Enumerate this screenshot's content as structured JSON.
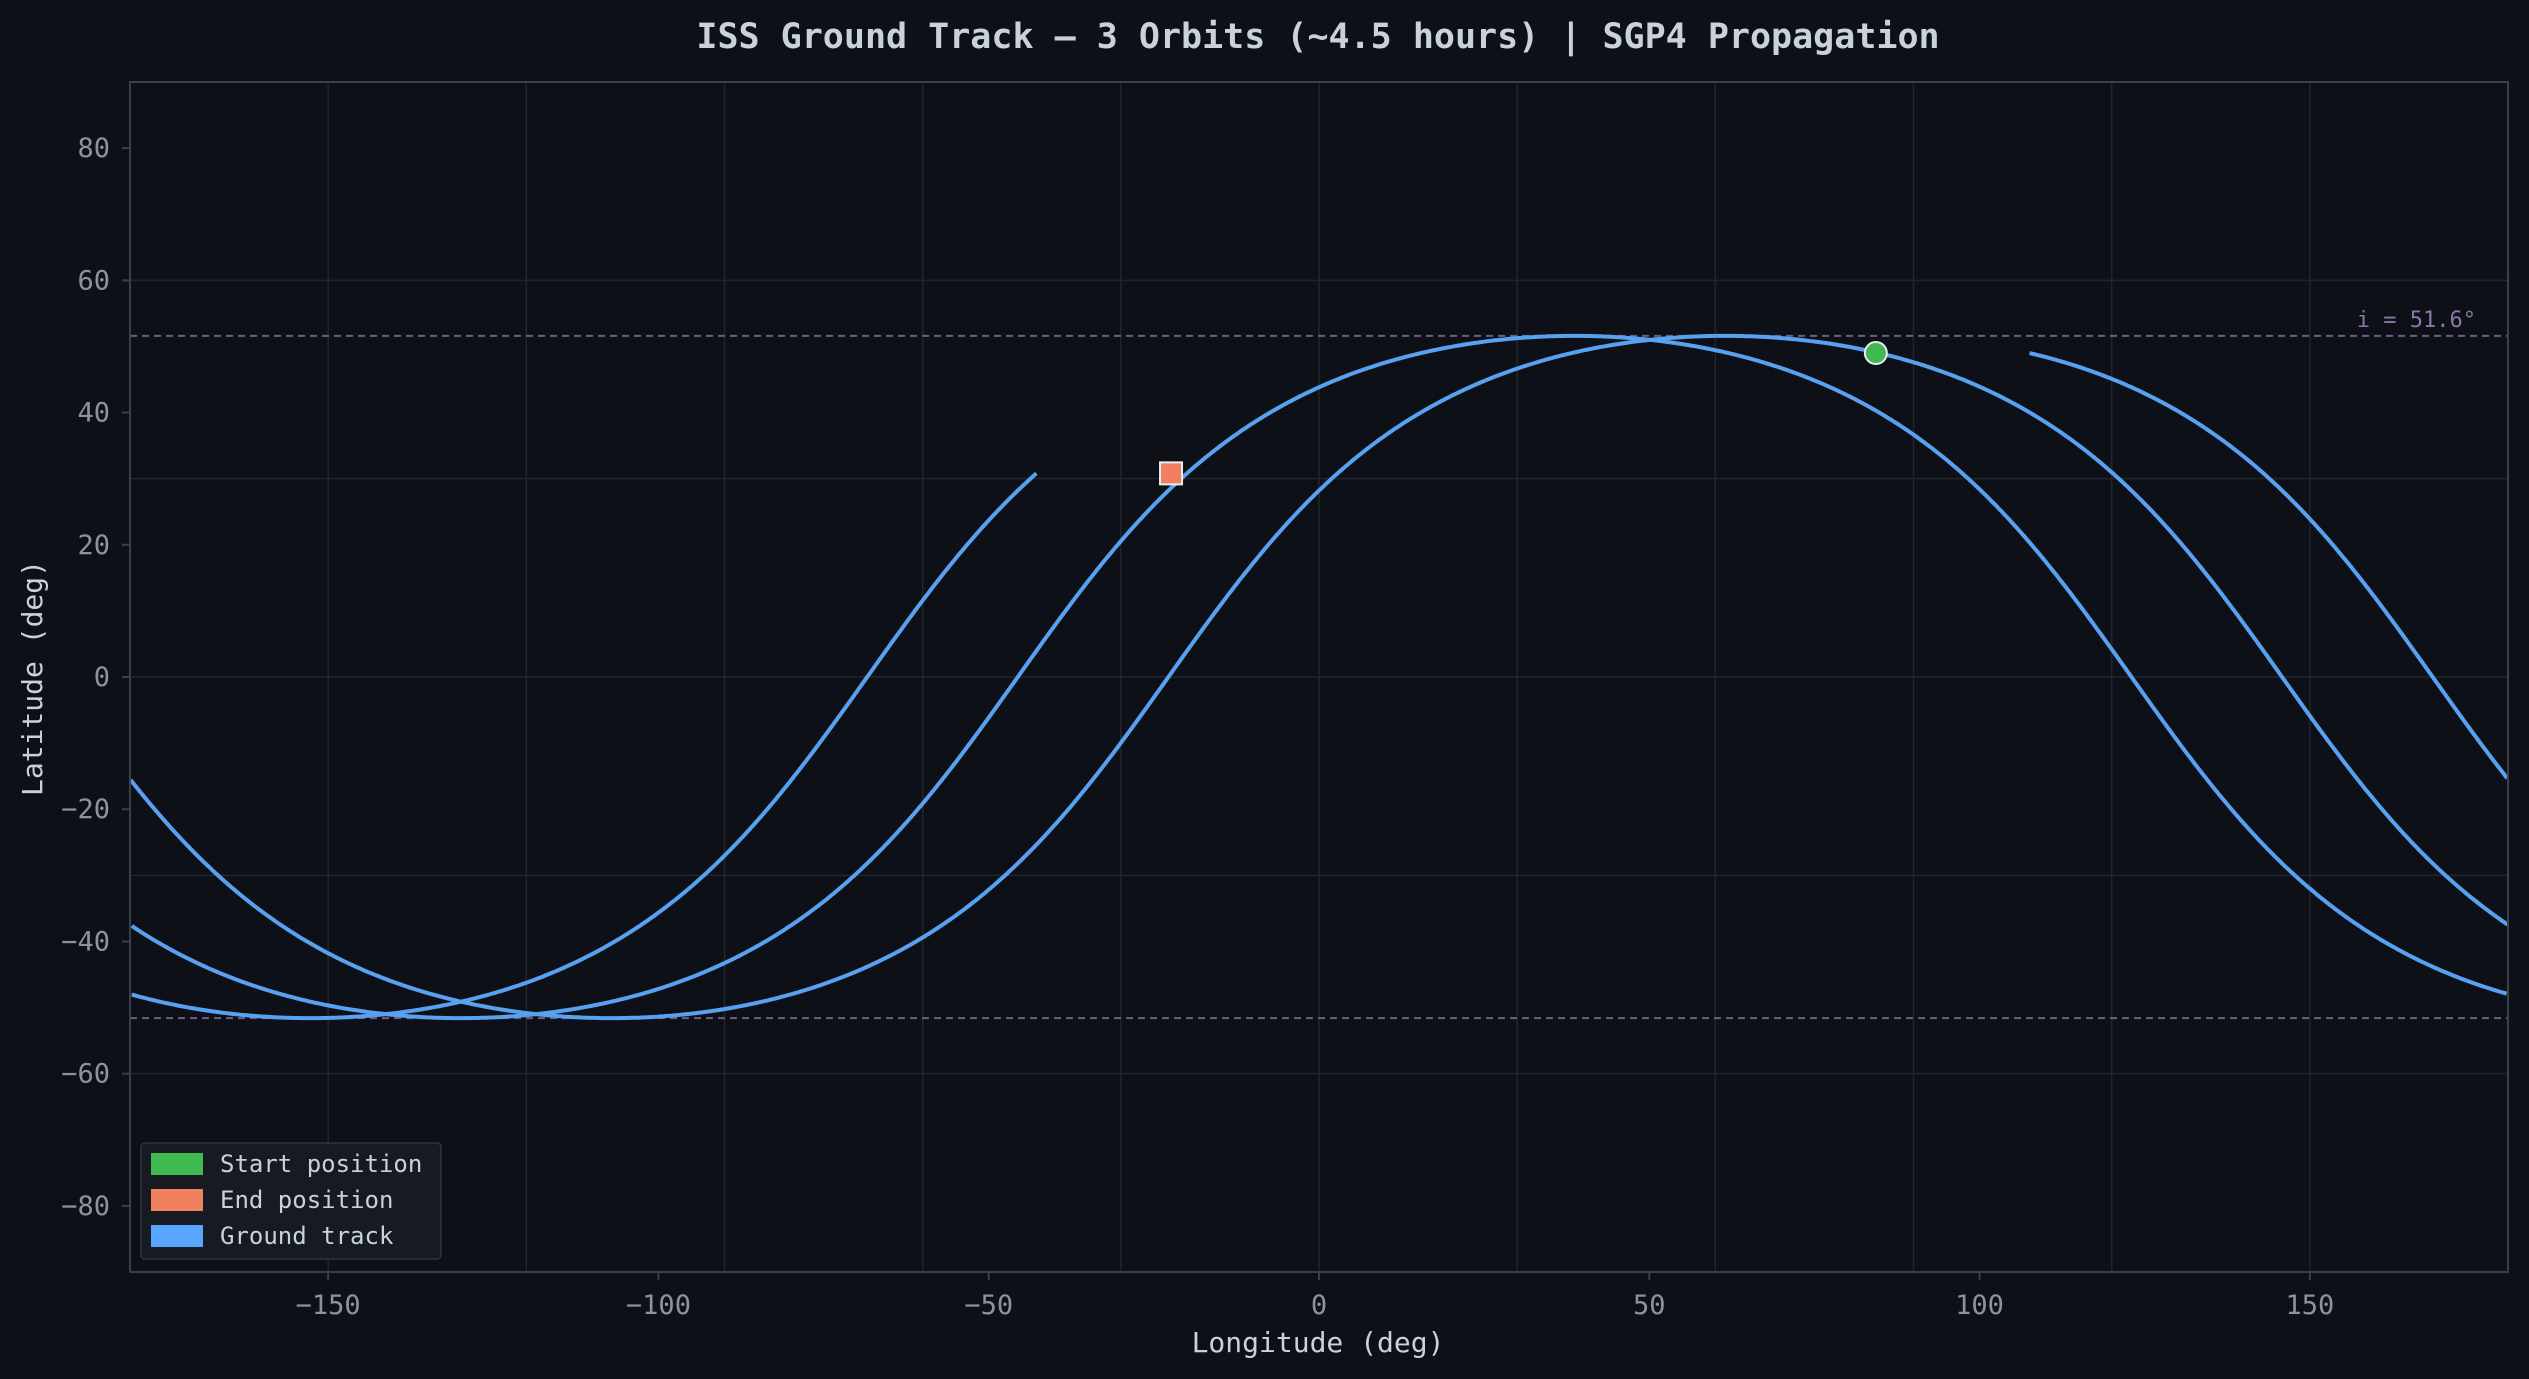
{
  "colors": {
    "background": "#0d1117",
    "plot_background": "#0d1117",
    "grid": "#21262d",
    "axes": "#3a4048",
    "track": "#58a0f0",
    "start": "#3fb950",
    "end": "#f0805f",
    "legend_track": "#58a6ff",
    "inclination_line": "#6e5b8c",
    "inclination_text": "#8a76a8"
  },
  "chart_data": {
    "type": "line",
    "title": "ISS Ground Track — 3 Orbits (~4.5 hours)  |  SGP4 Propagation",
    "xlabel": "Longitude (deg)",
    "ylabel": "Latitude (deg)",
    "xlim": [
      -180,
      180
    ],
    "ylim": [
      -90,
      90
    ],
    "xticks": [
      -150,
      -100,
      -50,
      0,
      50,
      100,
      150
    ],
    "yticks": [
      80,
      60,
      40,
      20,
      0,
      -20,
      -40,
      -60,
      -80
    ],
    "grid": true,
    "inclination_deg": 51.6,
    "inclination_label": "i = 51.6°",
    "ground_track": {
      "name": "Ground track",
      "orbit_start_lon": 84.3,
      "orbit_start_lat": 49.0,
      "orbit_start_ascending_node_lon": 0.0,
      "node_shift_per_orbit_deg": -22.8,
      "orbits": 3,
      "end_lon": -22.4,
      "end_lat": 30.8
    },
    "start_position": {
      "lon": 84.3,
      "lat": 49.0
    },
    "end_position": {
      "lon": -22.4,
      "lat": 30.8
    },
    "legend": {
      "position": "lower-left",
      "entries": [
        {
          "label": "Start position",
          "color_key": "start"
        },
        {
          "label": "End position",
          "color_key": "end"
        },
        {
          "label": "Ground track",
          "color_key": "legend_track"
        }
      ]
    }
  }
}
